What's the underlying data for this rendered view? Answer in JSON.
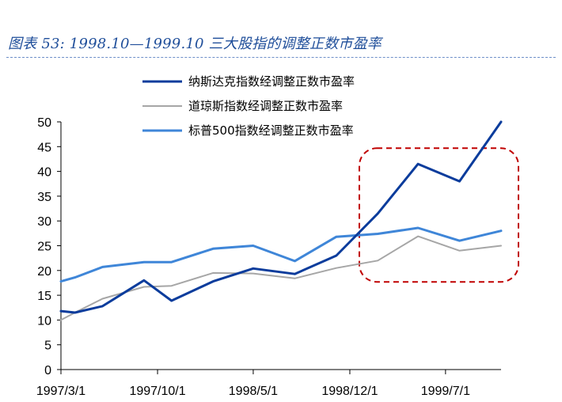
{
  "figure": {
    "title": "图表 53: 1998.10—1999.10 三大股指的调整正数市盈率"
  },
  "chart_data": {
    "type": "line",
    "title": "",
    "xlabel": "",
    "ylabel": "",
    "ylim": [
      0,
      50
    ],
    "y_ticks": [
      "0",
      "5",
      "10",
      "15",
      "20",
      "25",
      "30",
      "35",
      "40",
      "45",
      "50"
    ],
    "x_tick_labels": [
      "1997/3/1",
      "1997/10/1",
      "1998/5/1",
      "1998/12/1",
      "1999/7/1"
    ],
    "x": [
      "1997/3/1",
      "1997/4/1",
      "1997/6/1",
      "1997/9/1",
      "1997/11/1",
      "1998/2/1",
      "1998/5/1",
      "1998/8/1",
      "1998/11/1",
      "1999/2/1",
      "1999/5/1",
      "1999/8/1",
      "1999/11/1"
    ],
    "grid": false,
    "legend_position": "top",
    "series": [
      {
        "name": "纳斯达克指数经调整正数市盈率",
        "color": "#0b3c9c",
        "values": [
          11.8,
          11.5,
          12.8,
          18.0,
          13.9,
          17.8,
          20.4,
          19.3,
          23.0,
          31.5,
          41.5,
          38.0,
          50.0
        ]
      },
      {
        "name": "道琼斯指数经调整正数市盈率",
        "color": "#a6a6a6",
        "values": [
          10.0,
          11.5,
          14.3,
          16.7,
          16.9,
          19.5,
          19.4,
          18.4,
          20.5,
          22.0,
          26.9,
          24.0,
          25.0
        ]
      },
      {
        "name": "标普500指数经调整正数市盈率",
        "color": "#3f86d8",
        "values": [
          17.8,
          18.6,
          20.7,
          21.7,
          21.7,
          24.4,
          25.0,
          21.9,
          26.8,
          27.4,
          28.6,
          26.0,
          28.0
        ]
      }
    ],
    "annotation": {
      "type": "dashed-rounded-rect",
      "color": "#c00000",
      "x_from": "1998/12/1",
      "x_to": "1999/11/1",
      "y_from": 18.5,
      "y_to": 45
    }
  }
}
